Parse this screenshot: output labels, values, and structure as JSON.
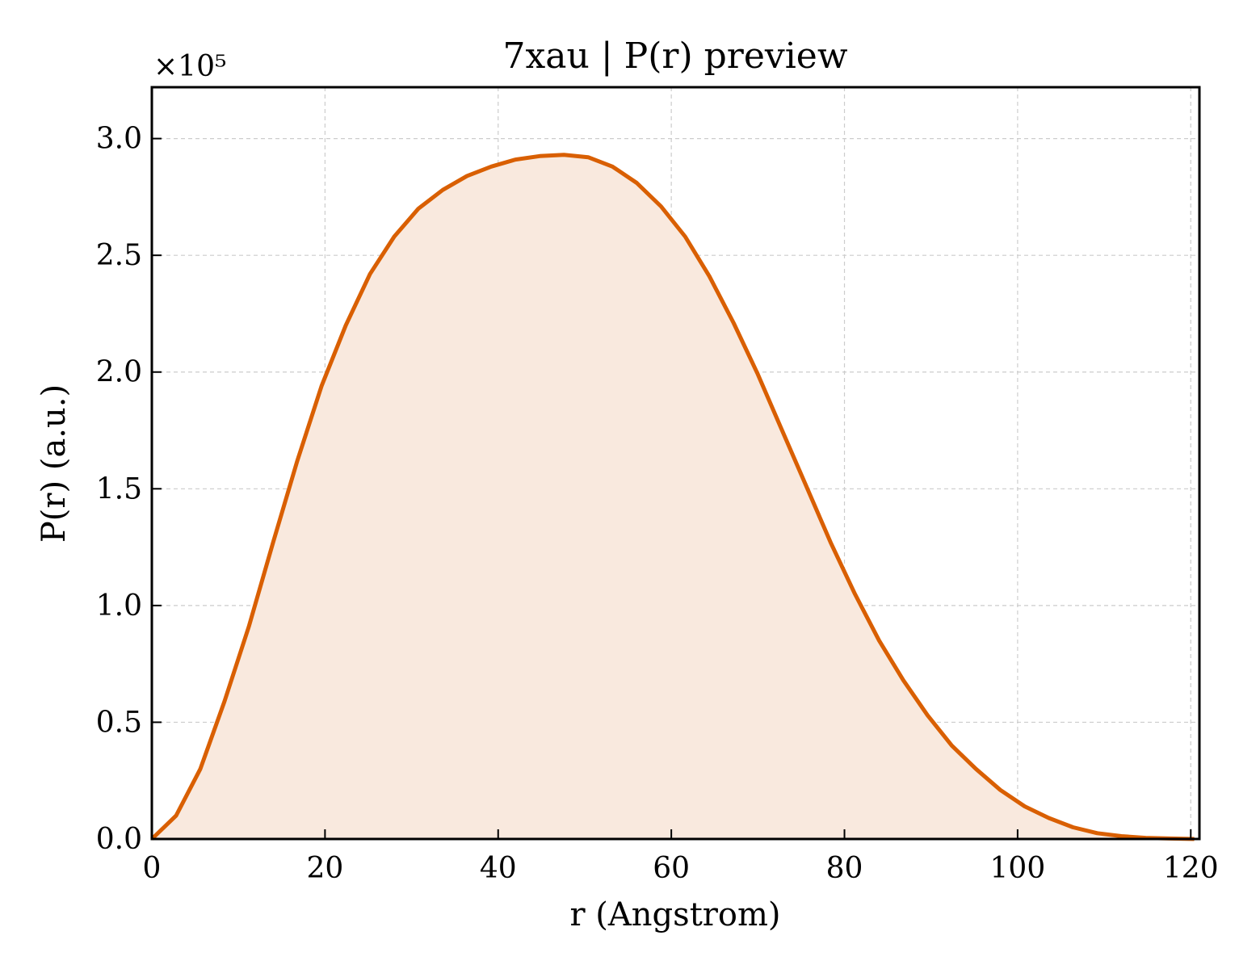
{
  "chart_data": {
    "type": "area",
    "title": "7xau | P(r) preview",
    "xlabel": "r (Angstrom)",
    "ylabel": "P(r) (a.u.)",
    "y_offset_label": "×10⁵",
    "xlim": [
      0,
      121
    ],
    "ylim": [
      0,
      3.22
    ],
    "xticks": [
      0,
      20,
      40,
      60,
      80,
      100,
      120
    ],
    "xtick_labels": [
      "0",
      "20",
      "40",
      "60",
      "80",
      "100",
      "120"
    ],
    "yticks": [
      0,
      0.5,
      1.0,
      1.5,
      2.0,
      2.5,
      3.0
    ],
    "ytick_labels": [
      "0.0",
      "0.5",
      "1.0",
      "1.5",
      "2.0",
      "2.5",
      "3.0"
    ],
    "grid": true,
    "line_color": "#d95f02",
    "fill_color": "#f9e9de",
    "series": [
      {
        "x": [
          0,
          2.8,
          5.6,
          8.4,
          11.2,
          14.0,
          16.8,
          19.6,
          22.4,
          25.2,
          28.0,
          30.8,
          33.6,
          36.4,
          39.2,
          42.0,
          44.8,
          47.6,
          50.4,
          53.2,
          56.0,
          58.8,
          61.6,
          64.4,
          67.2,
          70.0,
          72.8,
          75.6,
          78.4,
          81.2,
          84.0,
          86.8,
          89.6,
          92.4,
          95.2,
          98.0,
          100.8,
          103.6,
          106.4,
          109.2,
          112.0,
          114.8,
          117.6,
          120.4
        ],
        "y": [
          0.0,
          0.1,
          0.3,
          0.59,
          0.91,
          1.27,
          1.62,
          1.94,
          2.2,
          2.42,
          2.58,
          2.7,
          2.78,
          2.84,
          2.88,
          2.91,
          2.925,
          2.93,
          2.92,
          2.88,
          2.81,
          2.71,
          2.58,
          2.41,
          2.21,
          1.99,
          1.75,
          1.51,
          1.27,
          1.05,
          0.85,
          0.68,
          0.53,
          0.4,
          0.3,
          0.21,
          0.14,
          0.09,
          0.05,
          0.025,
          0.012,
          0.005,
          0.002,
          0.0
        ]
      }
    ]
  }
}
